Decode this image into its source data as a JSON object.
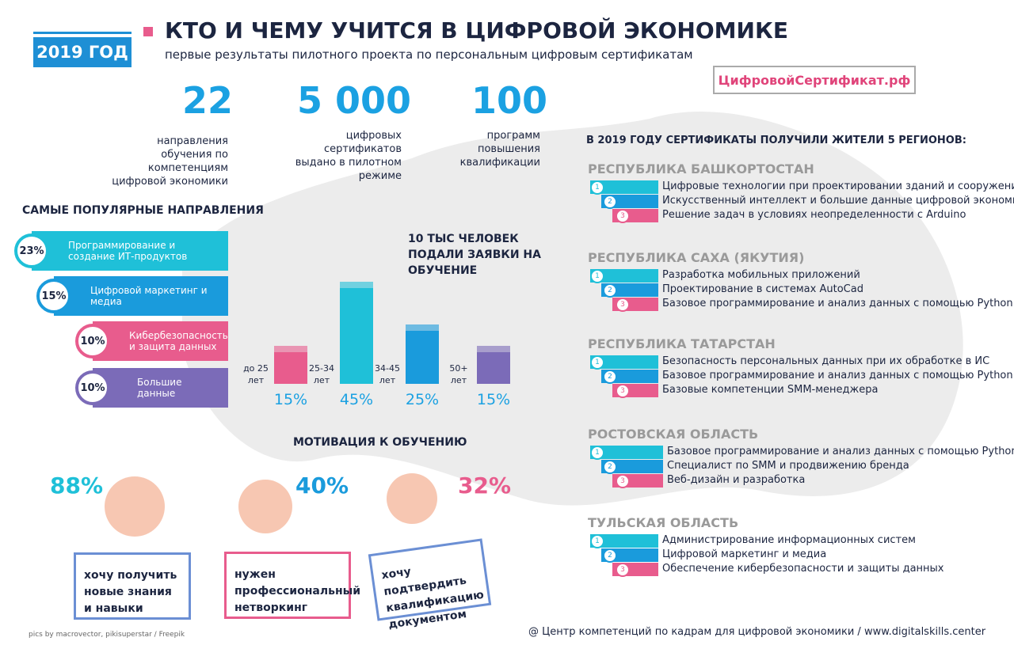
{
  "header": {
    "year": "2019 ГОД",
    "title": "КТО И ЧЕМУ УЧИТСЯ В ЦИФРОВОЙ ЭКОНОМИКЕ",
    "subtitle": "первые результаты пилотного проекта по персональным цифровым сертификатам",
    "site": "ЦифровойСертификат.рф"
  },
  "stats": [
    {
      "value": "22",
      "label": "направления обучения по компетенциям цифровой экономики"
    },
    {
      "value": "5 000",
      "label": "цифровых сертификатов выдано в пилотном режиме"
    },
    {
      "value": "100",
      "label": "программ повышения квалификации"
    }
  ],
  "popular": {
    "title": "САМЫЕ ПОПУЛЯРНЫЕ НАПРАВЛЕНИЯ",
    "items": [
      {
        "percent": "23%",
        "label": "Программирование и создание ИТ-продуктов"
      },
      {
        "percent": "15%",
        "label": "Цифровой маркетинг и медиа"
      },
      {
        "percent": "10%",
        "label": "Кибербезопасность и защита данных"
      },
      {
        "percent": "10%",
        "label": "Большие данные"
      }
    ]
  },
  "applications": {
    "title": "10 ТЫС ЧЕЛОВЕК ПОДАЛИ ЗАЯВКИ НА ОБУЧЕНИЕ",
    "categories": [
      "до 25 лет",
      "25-34 лет",
      "34-45 лет",
      "50+ лет"
    ],
    "values": [
      15,
      45,
      25,
      15
    ],
    "value_labels": [
      "15%",
      "45%",
      "25%",
      "15%"
    ]
  },
  "motivation": {
    "title": "МОТИВАЦИЯ К ОБУЧЕНИЮ",
    "items": [
      {
        "percent": "88%",
        "label": "хочу получить новые знания и навыки"
      },
      {
        "percent": "40%",
        "label": "нужен профессиональный нетворкинг"
      },
      {
        "percent": "32%",
        "label": "хочу подтвердить квалификацию документом"
      }
    ]
  },
  "regions": {
    "title": "В 2019 ГОДУ СЕРТИФИКАТЫ ПОЛУЧИЛИ ЖИТЕЛИ 5 РЕГИОНОВ:",
    "ranks": [
      "1",
      "2",
      "3"
    ],
    "items": [
      {
        "name": "РЕСПУБЛИКА БАШКОРТОСТАН",
        "courses": [
          "Цифровые технологии при проектировании зданий и сооружений",
          "Искусственный интеллект и большие данные цифровой экономики",
          "Решение задач в условиях неопределенности с Arduino"
        ]
      },
      {
        "name": "РЕСПУБЛИКА САХА (ЯКУТИЯ)",
        "courses": [
          "Разработка мобильных приложений",
          "Проектирование в системах AutoCad",
          "Базовое программирование и анализ данных с помощью Python"
        ]
      },
      {
        "name": "РЕСПУБЛИКА ТАТАРСТАН",
        "courses": [
          "Безопасность персональных данных при их обработке в ИС",
          "Базовое программирование и анализ данных с помощью Python",
          "Базовые компетенции SMM-менеджера"
        ]
      },
      {
        "name": "РОСТОВСКАЯ ОБЛАСТЬ",
        "courses": [
          "Базовое программирование и анализ данных с помощью Python",
          "Специалист по SMM и продвижению бренда",
          "Веб-дизайн и разработка"
        ]
      },
      {
        "name": "ТУЛЬСКАЯ ОБЛАСТЬ",
        "courses": [
          "Администрирование информационных систем",
          "Цифровой маркетинг и медиа",
          "Обеспечение кибербезопасности и защиты данных"
        ]
      }
    ]
  },
  "footer": {
    "credits": "pics by macrovector, pikisuperstar / Freepik",
    "org": "@ Центр компетенций по кадрам для цифровой экономики / www.digitalskills.center"
  }
}
